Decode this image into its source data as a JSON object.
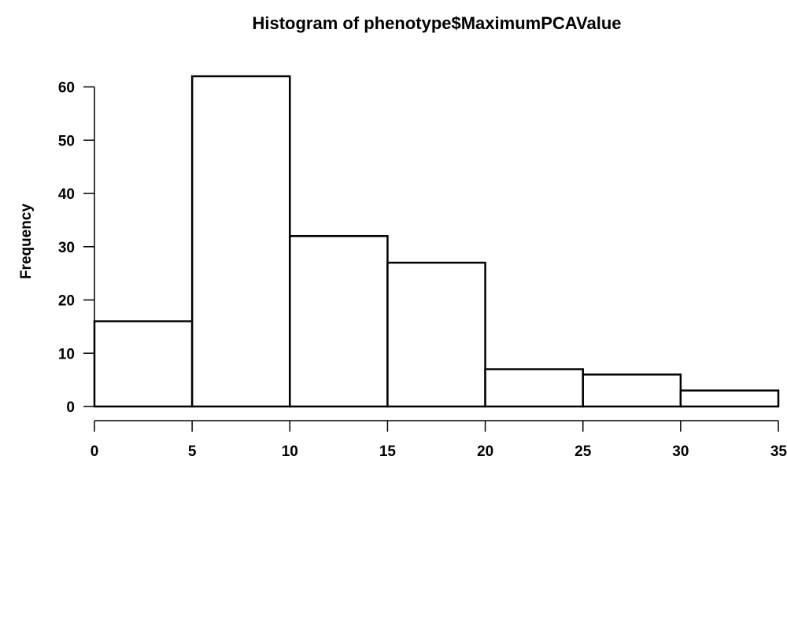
{
  "chart_data": {
    "type": "bar",
    "title": "Histogram of phenotype$MaximumPCAValue",
    "xlabel": "",
    "ylabel": "Frequency",
    "bins": [
      {
        "start": 0,
        "end": 5,
        "count": 16
      },
      {
        "start": 5,
        "end": 10,
        "count": 62
      },
      {
        "start": 10,
        "end": 15,
        "count": 32
      },
      {
        "start": 15,
        "end": 20,
        "count": 27
      },
      {
        "start": 20,
        "end": 25,
        "count": 7
      },
      {
        "start": 25,
        "end": 30,
        "count": 6
      },
      {
        "start": 30,
        "end": 35,
        "count": 3
      }
    ],
    "xlim": [
      0,
      35
    ],
    "ylim": [
      0,
      62
    ],
    "x_ticks": [
      0,
      5,
      10,
      15,
      20,
      25,
      30,
      35
    ],
    "x_tick_labels": [
      "0",
      "5",
      "10",
      "15",
      "20",
      "25",
      "30",
      "35"
    ],
    "y_ticks": [
      0,
      10,
      20,
      30,
      40,
      50,
      60
    ],
    "y_tick_labels": [
      "0",
      "10",
      "20",
      "30",
      "40",
      "50",
      "60"
    ],
    "grid": false,
    "bar_fill": "#ffffff",
    "bar_stroke": "#000000"
  }
}
